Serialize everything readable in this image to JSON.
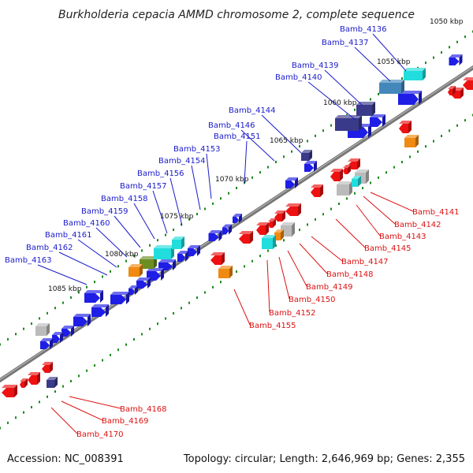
{
  "title": "Burkholderia cepacia AMMD chromosome 2, complete sequence",
  "footer": {
    "accession": "Accession: NC_008391",
    "stats": "Topology: circular; Length: 2,646,969 bp; Genes: 2,355"
  },
  "colors": {
    "backbone": "#777777",
    "tick": "#1a8a1a",
    "forward_label": "#1a1acc",
    "reverse_label": "#dd1111",
    "blue": "#1e1ee6",
    "red": "#ee1111",
    "cyan": "#22dddd",
    "steel": "#4488bb",
    "navy": "#3a3a8a",
    "orange": "#f08a10",
    "gray": "#bbbbbb",
    "olive": "#6b8e23"
  },
  "ticks": [
    "1050 kbp",
    "1055 kbp",
    "1060 kbp",
    "1065 kbp",
    "1070 kbp",
    "1075 kbp",
    "1080 kbp",
    "1085 kbp"
  ],
  "forward_labels": [
    "Bamb_4136",
    "Bamb_4137",
    "Bamb_4139",
    "Bamb_4140",
    "Bamb_4144",
    "Bamb_4146",
    "Bamb_4151",
    "Bamb_4153",
    "Bamb_4154",
    "Bamb_4156",
    "Bamb_4157",
    "Bamb_4158",
    "Bamb_4159",
    "Bamb_4160",
    "Bamb_4161",
    "Bamb_4162",
    "Bamb_4163"
  ],
  "reverse_labels": [
    "Bamb_4141",
    "Bamb_4142",
    "Bamb_4143",
    "Bamb_4145",
    "Bamb_4147",
    "Bamb_4148",
    "Bamb_4149",
    "Bamb_4150",
    "Bamb_4152",
    "Bamb_4155",
    "Bamb_4168",
    "Bamb_4169",
    "Bamb_4170"
  ]
}
